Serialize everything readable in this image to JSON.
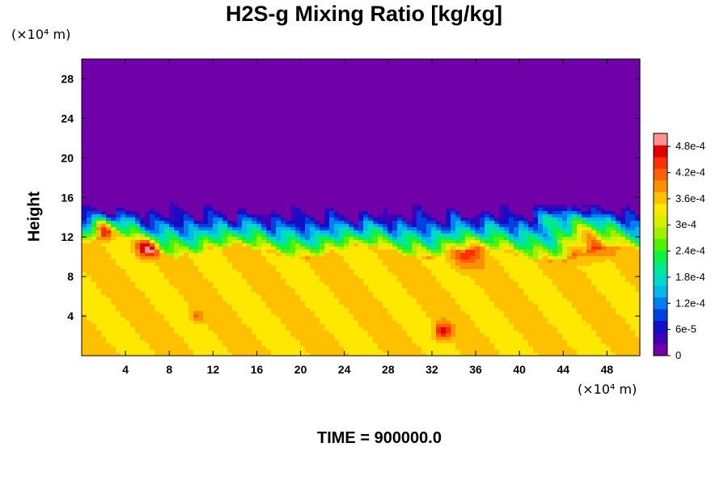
{
  "chart_data": {
    "type": "heatmap",
    "title": "H2S-g Mixing Ratio [kg/kg]",
    "ylabel": "Height",
    "x_unit": "(×10⁴ m)",
    "y_unit": "(×10⁴ m)",
    "xlim": [
      0,
      51
    ],
    "ylim": [
      0,
      30
    ],
    "x_ticks": [
      "4",
      "8",
      "12",
      "16",
      "20",
      "24",
      "28",
      "32",
      "36",
      "40",
      "44",
      "48"
    ],
    "x_tick_values": [
      4,
      8,
      12,
      16,
      20,
      24,
      28,
      32,
      36,
      40,
      44,
      48
    ],
    "y_ticks": [
      "4",
      "8",
      "12",
      "16",
      "20",
      "24",
      "28"
    ],
    "y_tick_values": [
      4,
      8,
      12,
      16,
      20,
      24,
      28
    ],
    "colorbar": {
      "min": 0,
      "max": 0.00051,
      "labels": [
        "0",
        "6e-5",
        "1.2e-4",
        "1.8e-4",
        "2.4e-4",
        "3e-4",
        "3.6e-4",
        "4.2e-4",
        "4.8e-4"
      ],
      "label_values": [
        0,
        6e-05,
        0.00012,
        0.00018,
        0.00024,
        0.0003,
        0.00036,
        0.00042,
        0.00048
      ],
      "colors": [
        "#7000a8",
        "#4000b8",
        "#1010c8",
        "#0040e0",
        "#0080f0",
        "#00b8e8",
        "#00d8c8",
        "#00e890",
        "#10f040",
        "#50f000",
        "#a0f000",
        "#d8f000",
        "#ffe800",
        "#ffc000",
        "#ff9000",
        "#ff6000",
        "#ff3000",
        "#e00000",
        "#ff9090"
      ]
    },
    "fields": {
      "upper_level": 0.0,
      "lower_level": 0.00035,
      "mixing_layer_top_height": 15,
      "mixing_layer_bottom_height": 10.5
    }
  },
  "footer": {
    "time_text": "TIME = 900000.0"
  }
}
